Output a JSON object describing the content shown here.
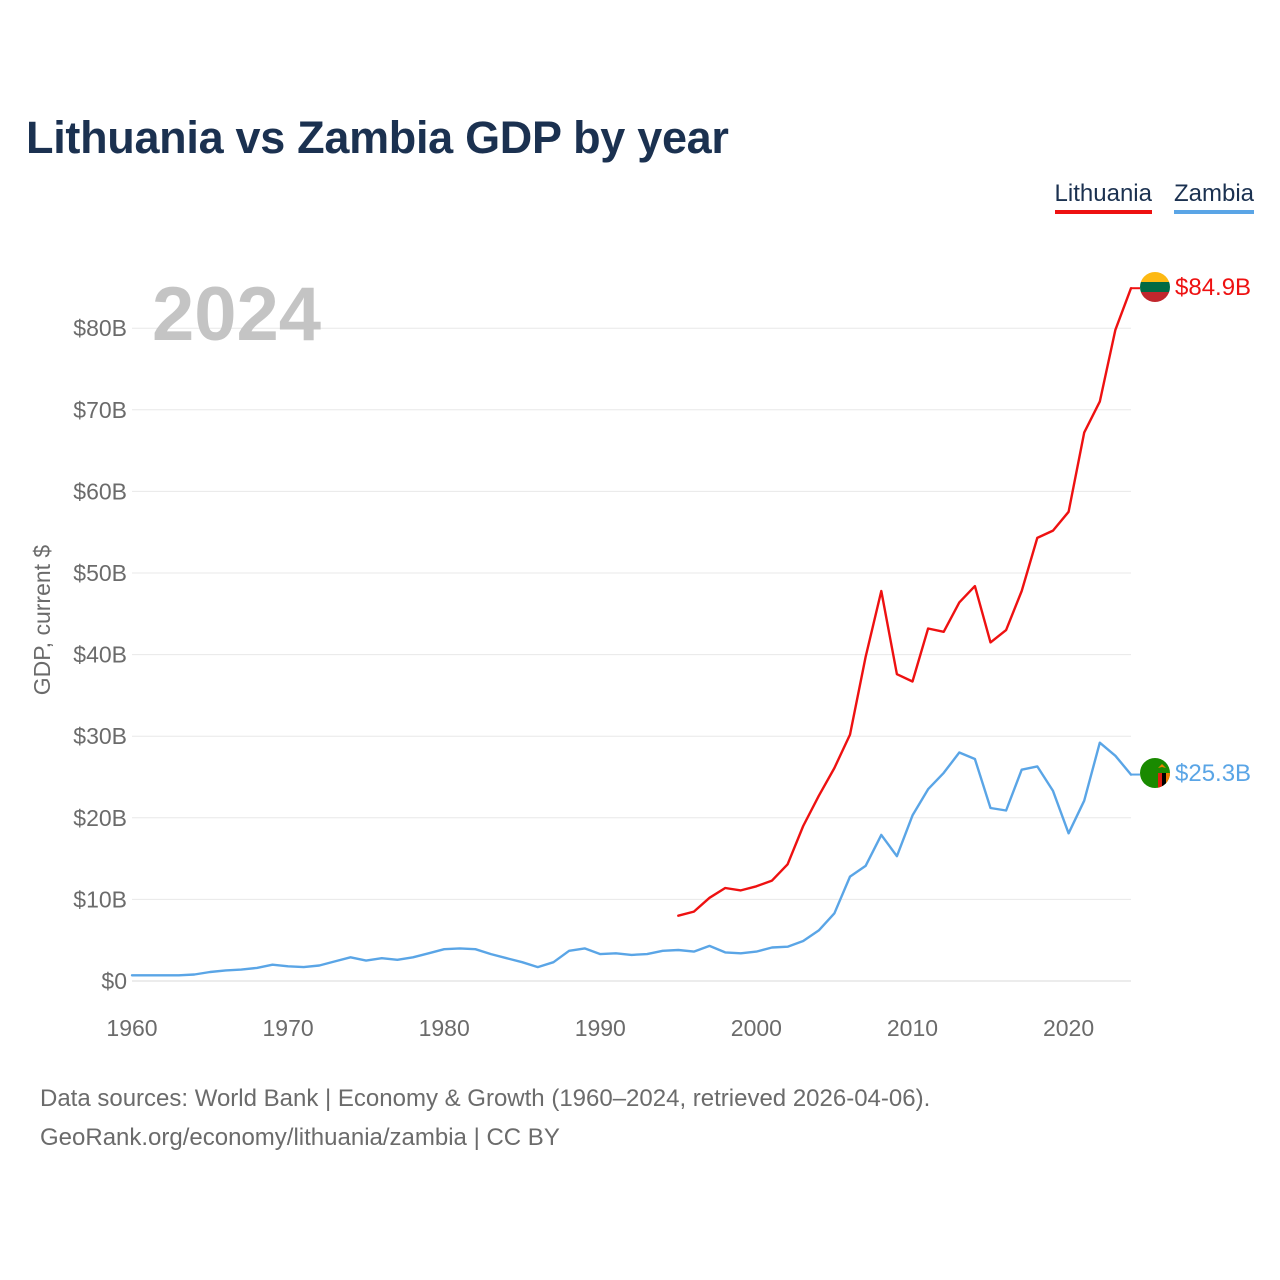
{
  "chart_data": {
    "type": "line",
    "title": "Lithuania vs Zambia GDP by year",
    "ylabel": "GDP, current $",
    "xlabel": "",
    "year_label": "2024",
    "xlim": [
      1960,
      2024
    ],
    "ylim": [
      0,
      85
    ],
    "y_unit": "billion USD",
    "x_ticks": [
      1960,
      1970,
      1980,
      1990,
      2000,
      2010,
      2020
    ],
    "x_tick_labels": [
      "1960",
      "1970",
      "1980",
      "1990",
      "2000",
      "2010",
      "2020"
    ],
    "y_ticks": [
      0,
      10,
      20,
      30,
      40,
      50,
      60,
      70,
      80
    ],
    "y_tick_labels": [
      "$0",
      "$10B",
      "$20B",
      "$30B",
      "$40B",
      "$50B",
      "$60B",
      "$70B",
      "$80B"
    ],
    "grid": true,
    "legend_position": "top-right",
    "series": [
      {
        "name": "Lithuania",
        "color": "#ee1111",
        "end_label": "$84.9B",
        "flag_icon": "lithuania-flag-icon",
        "x": [
          1995,
          1996,
          1997,
          1998,
          1999,
          2000,
          2001,
          2002,
          2003,
          2004,
          2005,
          2006,
          2007,
          2008,
          2009,
          2010,
          2011,
          2012,
          2013,
          2014,
          2015,
          2016,
          2017,
          2018,
          2019,
          2020,
          2021,
          2022,
          2023,
          2024
        ],
        "values": [
          8.0,
          8.5,
          10.2,
          11.4,
          11.1,
          11.6,
          12.3,
          14.3,
          19.0,
          22.7,
          26.1,
          30.2,
          39.7,
          47.8,
          37.6,
          36.7,
          43.2,
          42.8,
          46.4,
          48.4,
          41.5,
          43.0,
          47.8,
          54.3,
          55.2,
          57.5,
          67.2,
          71.0,
          79.8,
          84.9
        ]
      },
      {
        "name": "Zambia",
        "color": "#5aa5e6",
        "end_label": "$25.3B",
        "flag_icon": "zambia-flag-icon",
        "x": [
          1960,
          1961,
          1962,
          1963,
          1964,
          1965,
          1966,
          1967,
          1968,
          1969,
          1970,
          1971,
          1972,
          1973,
          1974,
          1975,
          1976,
          1977,
          1978,
          1979,
          1980,
          1981,
          1982,
          1983,
          1984,
          1985,
          1986,
          1987,
          1988,
          1989,
          1990,
          1991,
          1992,
          1993,
          1994,
          1995,
          1996,
          1997,
          1998,
          1999,
          2000,
          2001,
          2002,
          2003,
          2004,
          2005,
          2006,
          2007,
          2008,
          2009,
          2010,
          2011,
          2012,
          2013,
          2014,
          2015,
          2016,
          2017,
          2018,
          2019,
          2020,
          2021,
          2022,
          2023,
          2024
        ],
        "values": [
          0.7,
          0.7,
          0.7,
          0.7,
          0.8,
          1.1,
          1.3,
          1.4,
          1.6,
          2.0,
          1.8,
          1.7,
          1.9,
          2.4,
          2.9,
          2.5,
          2.8,
          2.6,
          2.9,
          3.4,
          3.9,
          4.0,
          3.9,
          3.3,
          2.8,
          2.3,
          1.7,
          2.3,
          3.7,
          4.0,
          3.3,
          3.4,
          3.2,
          3.3,
          3.7,
          3.8,
          3.6,
          4.3,
          3.5,
          3.4,
          3.6,
          4.1,
          4.2,
          4.9,
          6.2,
          8.3,
          12.8,
          14.1,
          17.9,
          15.3,
          20.3,
          23.5,
          25.5,
          28.0,
          27.2,
          21.2,
          20.9,
          25.9,
          26.3,
          23.3,
          18.1,
          22.1,
          29.2,
          27.6,
          25.3
        ]
      }
    ]
  },
  "source": {
    "line1": "Data sources: World Bank | Economy & Growth (1960–2024, retrieved 2026-04-06).",
    "line2": "GeoRank.org/economy/lithuania/zambia | CC BY"
  }
}
